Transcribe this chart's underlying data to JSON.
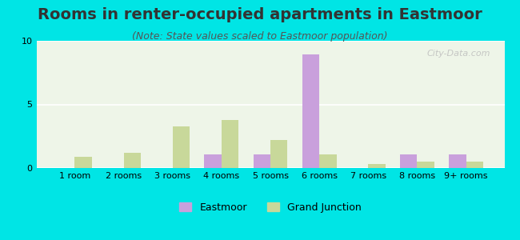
{
  "title": "Rooms in renter-occupied apartments in Eastmoor",
  "subtitle": "(Note: State values scaled to Eastmoor population)",
  "categories": [
    "1 room",
    "2 rooms",
    "3 rooms",
    "4 rooms",
    "5 rooms",
    "6 rooms",
    "7 rooms",
    "8 rooms",
    "9+ rooms"
  ],
  "eastmoor_values": [
    0,
    0,
    0,
    1.1,
    1.1,
    8.9,
    0,
    1.1,
    1.1
  ],
  "grand_junction_values": [
    0.9,
    1.2,
    3.3,
    3.8,
    2.2,
    1.1,
    0.3,
    0.5,
    0.5
  ],
  "eastmoor_color": "#c9a0dc",
  "grand_junction_color": "#c8d89a",
  "background_color": "#00e5e5",
  "plot_bg": "#eef5e8",
  "ylim": [
    0,
    10
  ],
  "yticks": [
    0,
    5,
    10
  ],
  "bar_width": 0.35,
  "title_fontsize": 14,
  "subtitle_fontsize": 9,
  "tick_fontsize": 8,
  "legend_fontsize": 9,
  "watermark": "City-Data.com"
}
